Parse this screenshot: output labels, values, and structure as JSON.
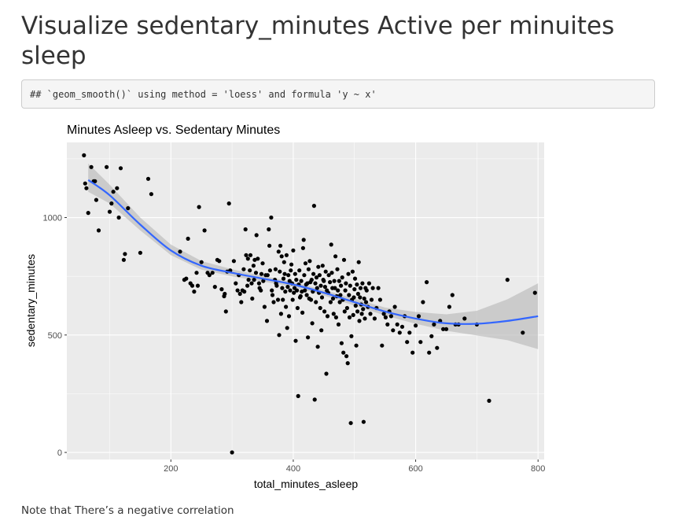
{
  "page": {
    "heading": "Visualize sedentary_minutes Active per minuites sleep",
    "code_output": "## `geom_smooth()` using method = 'loess' and formula 'y ~ x'",
    "note": "Note that There’s a negative correlation"
  },
  "colors": {
    "panel": "#ebebeb",
    "grid": "#ffffff",
    "point": "#000000",
    "smooth_line": "#3366ff",
    "ribbon": "#bdbdbd"
  },
  "chart_data": {
    "type": "scatter",
    "title": "Minutes Asleep vs. Sedentary Minutes",
    "xlabel": "total_minutes_asleep",
    "ylabel": "sedentary_minutes",
    "xlim": [
      30,
      810
    ],
    "ylim": [
      -30,
      1320
    ],
    "x_ticks": [
      200,
      400,
      600,
      800
    ],
    "y_ticks": [
      0,
      500,
      1000
    ],
    "grid": true,
    "legend": "none",
    "points": [
      [
        58,
        1265
      ],
      [
        60,
        1145
      ],
      [
        62,
        1125
      ],
      [
        65,
        1020
      ],
      [
        70,
        1215
      ],
      [
        74,
        1155
      ],
      [
        76,
        1155
      ],
      [
        78,
        1075
      ],
      [
        82,
        945
      ],
      [
        95,
        1215
      ],
      [
        100,
        1025
      ],
      [
        103,
        1060
      ],
      [
        106,
        1110
      ],
      [
        112,
        1125
      ],
      [
        115,
        1000
      ],
      [
        118,
        1210
      ],
      [
        123,
        820
      ],
      [
        125,
        845
      ],
      [
        130,
        1040
      ],
      [
        150,
        850
      ],
      [
        163,
        1165
      ],
      [
        168,
        1100
      ],
      [
        215,
        855
      ],
      [
        222,
        735
      ],
      [
        225,
        740
      ],
      [
        228,
        910
      ],
      [
        232,
        720
      ],
      [
        235,
        710
      ],
      [
        238,
        685
      ],
      [
        242,
        765
      ],
      [
        244,
        710
      ],
      [
        246,
        1045
      ],
      [
        250,
        810
      ],
      [
        255,
        945
      ],
      [
        260,
        765
      ],
      [
        263,
        755
      ],
      [
        268,
        765
      ],
      [
        272,
        705
      ],
      [
        276,
        820
      ],
      [
        279,
        815
      ],
      [
        283,
        695
      ],
      [
        287,
        665
      ],
      [
        288,
        675
      ],
      [
        290,
        600
      ],
      [
        292,
        770
      ],
      [
        295,
        1060
      ],
      [
        297,
        775
      ],
      [
        300,
        0
      ],
      [
        303,
        815
      ],
      [
        306,
        720
      ],
      [
        309,
        690
      ],
      [
        311,
        755
      ],
      [
        313,
        675
      ],
      [
        315,
        640
      ],
      [
        317,
        690
      ],
      [
        319,
        780
      ],
      [
        320,
        685
      ],
      [
        322,
        950
      ],
      [
        323,
        840
      ],
      [
        325,
        710
      ],
      [
        326,
        825
      ],
      [
        327,
        735
      ],
      [
        329,
        775
      ],
      [
        330,
        840
      ],
      [
        332,
        720
      ],
      [
        333,
        655
      ],
      [
        335,
        795
      ],
      [
        336,
        735
      ],
      [
        337,
        820
      ],
      [
        339,
        765
      ],
      [
        340,
        925
      ],
      [
        342,
        825
      ],
      [
        344,
        720
      ],
      [
        345,
        700
      ],
      [
        347,
        690
      ],
      [
        348,
        760
      ],
      [
        350,
        805
      ],
      [
        351,
        730
      ],
      [
        353,
        620
      ],
      [
        355,
        755
      ],
      [
        357,
        560
      ],
      [
        358,
        755
      ],
      [
        360,
        950
      ],
      [
        361,
        880
      ],
      [
        362,
        775
      ],
      [
        364,
        1000
      ],
      [
        365,
        690
      ],
      [
        366,
        670
      ],
      [
        368,
        640
      ],
      [
        370,
        735
      ],
      [
        371,
        780
      ],
      [
        372,
        720
      ],
      [
        373,
        710
      ],
      [
        375,
        650
      ],
      [
        376,
        855
      ],
      [
        377,
        500
      ],
      [
        378,
        770
      ],
      [
        379,
        880
      ],
      [
        380,
        590
      ],
      [
        381,
        835
      ],
      [
        382,
        700
      ],
      [
        383,
        650
      ],
      [
        384,
        740
      ],
      [
        385,
        810
      ],
      [
        386,
        760
      ],
      [
        387,
        685
      ],
      [
        388,
        620
      ],
      [
        389,
        840
      ],
      [
        390,
        530
      ],
      [
        391,
        705
      ],
      [
        392,
        755
      ],
      [
        393,
        580
      ],
      [
        394,
        730
      ],
      [
        395,
        690
      ],
      [
        396,
        775
      ],
      [
        397,
        800
      ],
      [
        398,
        720
      ],
      [
        399,
        650
      ],
      [
        400,
        860
      ],
      [
        401,
        680
      ],
      [
        402,
        700
      ],
      [
        403,
        760
      ],
      [
        404,
        475
      ],
      [
        405,
        735
      ],
      [
        406,
        690
      ],
      [
        407,
        615
      ],
      [
        408,
        240
      ],
      [
        409,
        715
      ],
      [
        410,
        775
      ],
      [
        411,
        660
      ],
      [
        412,
        665
      ],
      [
        413,
        730
      ],
      [
        414,
        685
      ],
      [
        415,
        595
      ],
      [
        416,
        870
      ],
      [
        417,
        905
      ],
      [
        418,
        755
      ],
      [
        419,
        690
      ],
      [
        420,
        805
      ],
      [
        421,
        715
      ],
      [
        422,
        670
      ],
      [
        423,
        720
      ],
      [
        424,
        490
      ],
      [
        425,
        780
      ],
      [
        426,
        655
      ],
      [
        427,
        815
      ],
      [
        428,
        725
      ],
      [
        429,
        650
      ],
      [
        430,
        735
      ],
      [
        431,
        550
      ],
      [
        432,
        685
      ],
      [
        433,
        760
      ],
      [
        434,
        1050
      ],
      [
        435,
        225
      ],
      [
        436,
        720
      ],
      [
        437,
        640
      ],
      [
        438,
        745
      ],
      [
        439,
        700
      ],
      [
        440,
        450
      ],
      [
        441,
        790
      ],
      [
        442,
        680
      ],
      [
        443,
        755
      ],
      [
        444,
        615
      ],
      [
        445,
        710
      ],
      [
        446,
        520
      ],
      [
        447,
        660
      ],
      [
        448,
        795
      ],
      [
        449,
        735
      ],
      [
        450,
        730
      ],
      [
        451,
        600
      ],
      [
        452,
        705
      ],
      [
        453,
        770
      ],
      [
        454,
        335
      ],
      [
        455,
        690
      ],
      [
        456,
        580
      ],
      [
        457,
        680
      ],
      [
        458,
        755
      ],
      [
        460,
        725
      ],
      [
        461,
        640
      ],
      [
        462,
        885
      ],
      [
        463,
        765
      ],
      [
        464,
        700
      ],
      [
        465,
        655
      ],
      [
        466,
        590
      ],
      [
        467,
        730
      ],
      [
        468,
        700
      ],
      [
        469,
        835
      ],
      [
        470,
        575
      ],
      [
        471,
        665
      ],
      [
        472,
        780
      ],
      [
        473,
        690
      ],
      [
        474,
        545
      ],
      [
        475,
        730
      ],
      [
        476,
        640
      ],
      [
        477,
        670
      ],
      [
        478,
        710
      ],
      [
        479,
        465
      ],
      [
        480,
        745
      ],
      [
        481,
        650
      ],
      [
        482,
        425
      ],
      [
        483,
        820
      ],
      [
        484,
        600
      ],
      [
        485,
        690
      ],
      [
        486,
        720
      ],
      [
        487,
        410
      ],
      [
        488,
        615
      ],
      [
        489,
        380
      ],
      [
        490,
        760
      ],
      [
        491,
        670
      ],
      [
        492,
        575
      ],
      [
        493,
        710
      ],
      [
        494,
        125
      ],
      [
        495,
        495
      ],
      [
        496,
        650
      ],
      [
        497,
        770
      ],
      [
        498,
        585
      ],
      [
        499,
        660
      ],
      [
        500,
        695
      ],
      [
        501,
        740
      ],
      [
        502,
        625
      ],
      [
        503,
        455
      ],
      [
        504,
        715
      ],
      [
        505,
        600
      ],
      [
        506,
        675
      ],
      [
        507,
        810
      ],
      [
        508,
        560
      ],
      [
        509,
        660
      ],
      [
        510,
        700
      ],
      [
        511,
        630
      ],
      [
        512,
        590
      ],
      [
        513,
        720
      ],
      [
        514,
        610
      ],
      [
        515,
        130
      ],
      [
        516,
        655
      ],
      [
        517,
        570
      ],
      [
        518,
        700
      ],
      [
        519,
        640
      ],
      [
        520,
        690
      ],
      [
        522,
        620
      ],
      [
        524,
        720
      ],
      [
        526,
        590
      ],
      [
        528,
        650
      ],
      [
        530,
        700
      ],
      [
        533,
        570
      ],
      [
        536,
        615
      ],
      [
        539,
        700
      ],
      [
        542,
        650
      ],
      [
        545,
        455
      ],
      [
        548,
        590
      ],
      [
        551,
        575
      ],
      [
        554,
        545
      ],
      [
        557,
        600
      ],
      [
        560,
        580
      ],
      [
        563,
        520
      ],
      [
        566,
        620
      ],
      [
        570,
        545
      ],
      [
        574,
        510
      ],
      [
        578,
        535
      ],
      [
        582,
        580
      ],
      [
        586,
        470
      ],
      [
        590,
        510
      ],
      [
        595,
        425
      ],
      [
        600,
        540
      ],
      [
        605,
        580
      ],
      [
        608,
        470
      ],
      [
        612,
        640
      ],
      [
        618,
        725
      ],
      [
        622,
        425
      ],
      [
        626,
        495
      ],
      [
        630,
        545
      ],
      [
        635,
        445
      ],
      [
        640,
        560
      ],
      [
        645,
        525
      ],
      [
        650,
        525
      ],
      [
        655,
        620
      ],
      [
        660,
        670
      ],
      [
        665,
        545
      ],
      [
        670,
        545
      ],
      [
        680,
        570
      ],
      [
        700,
        545
      ],
      [
        720,
        220
      ],
      [
        750,
        735
      ],
      [
        775,
        510
      ],
      [
        795,
        680
      ]
    ],
    "smooth": {
      "x": [
        65,
        100,
        150,
        200,
        250,
        300,
        350,
        400,
        450,
        500,
        550,
        600,
        650,
        700,
        750,
        800
      ],
      "y": [
        1160,
        1095,
        970,
        860,
        795,
        765,
        740,
        715,
        680,
        640,
        600,
        570,
        550,
        548,
        560,
        580
      ],
      "lower": [
        1110,
        1060,
        945,
        840,
        778,
        750,
        728,
        705,
        668,
        625,
        583,
        548,
        518,
        498,
        478,
        440
      ],
      "upper": [
        1230,
        1140,
        1000,
        885,
        815,
        780,
        752,
        725,
        692,
        655,
        617,
        598,
        588,
        603,
        652,
        720
      ]
    }
  }
}
